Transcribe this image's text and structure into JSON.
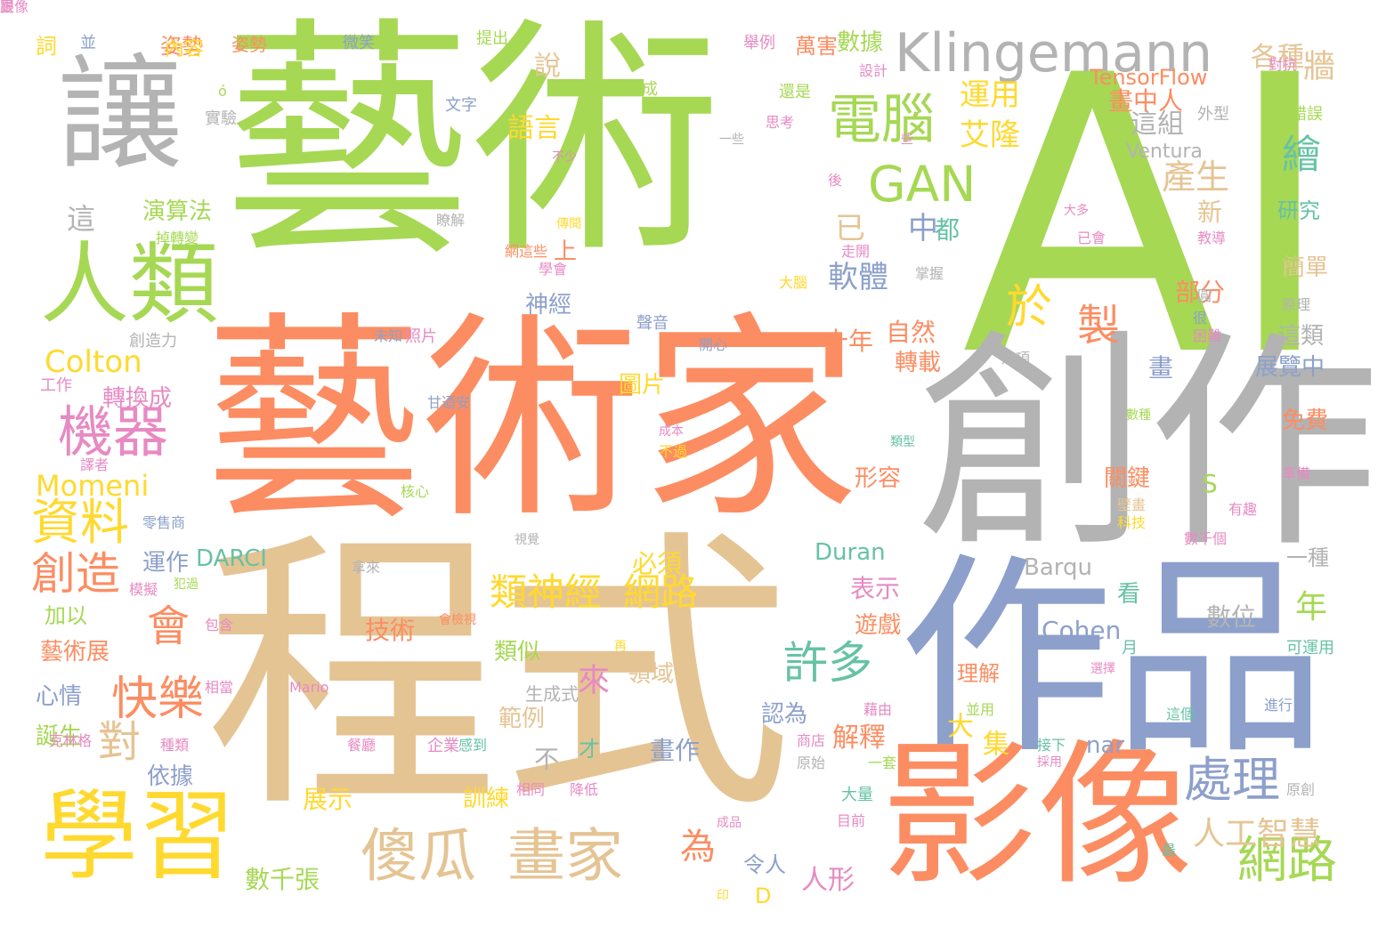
{
  "palette": {
    "green": "#a6d854",
    "orange": "#fc8d62",
    "tan": "#e5c494",
    "blue": "#8da0cb",
    "gray": "#b3b3b3",
    "yellow": "#ffd92f",
    "teal": "#66c2a5",
    "pink": "#e78ac3"
  },
  "words": [
    {
      "text": "AI",
      "color": "green"
    },
    {
      "text": "藝術",
      "color": "green"
    },
    {
      "text": "藝術家",
      "color": "orange"
    },
    {
      "text": "程式",
      "color": "tan"
    },
    {
      "text": "創作",
      "color": "gray"
    },
    {
      "text": "作品",
      "color": "blue"
    },
    {
      "text": "影像",
      "color": "orange"
    },
    {
      "text": "讓",
      "color": "gray"
    },
    {
      "text": "人類",
      "color": "green"
    },
    {
      "text": "學習",
      "color": "yellow"
    },
    {
      "text": "Klingemann",
      "color": "gray"
    },
    {
      "text": "電腦",
      "color": "green"
    },
    {
      "text": "GAN",
      "color": "green"
    },
    {
      "text": "機器",
      "color": "pink"
    },
    {
      "text": "資料",
      "color": "yellow"
    },
    {
      "text": "創造",
      "color": "orange"
    },
    {
      "text": "處理",
      "color": "blue"
    },
    {
      "text": "傻瓜",
      "color": "tan"
    },
    {
      "text": "畫家",
      "color": "tan"
    },
    {
      "text": "許多",
      "color": "teal"
    },
    {
      "text": "網路",
      "color": "green"
    },
    {
      "text": "快樂",
      "color": "orange"
    },
    {
      "text": "會",
      "color": "orange"
    },
    {
      "text": "Colton",
      "color": "yellow"
    },
    {
      "text": "Momeni",
      "color": "yellow"
    },
    {
      "text": "類神經",
      "color": "yellow"
    },
    {
      "text": "網路",
      "color": "yellow"
    },
    {
      "text": "對",
      "color": "tan"
    },
    {
      "text": "於",
      "color": "yellow"
    },
    {
      "text": "製",
      "color": "orange"
    },
    {
      "text": "繪",
      "color": "teal"
    },
    {
      "text": "產生",
      "color": "tan"
    },
    {
      "text": "運用",
      "color": "yellow"
    },
    {
      "text": "艾隆",
      "color": "yellow"
    },
    {
      "text": "這組",
      "color": "gray"
    },
    {
      "text": "畫中人",
      "color": "orange"
    },
    {
      "text": "TensorFlow",
      "color": "orange"
    },
    {
      "text": "Ventura",
      "color": "gray"
    },
    {
      "text": "各種",
      "color": "tan"
    },
    {
      "text": "牆",
      "color": "tan"
    },
    {
      "text": "軟體",
      "color": "blue"
    },
    {
      "text": "中",
      "color": "blue"
    },
    {
      "text": "都",
      "color": "teal"
    },
    {
      "text": "已",
      "color": "tan"
    },
    {
      "text": "自然",
      "color": "orange"
    },
    {
      "text": "十年",
      "color": "orange"
    },
    {
      "text": "轉載",
      "color": "orange"
    },
    {
      "text": "語言",
      "color": "yellow"
    },
    {
      "text": "說",
      "color": "tan"
    },
    {
      "text": "數據",
      "color": "green"
    },
    {
      "text": "姿勢",
      "color": "orange"
    },
    {
      "text": "演算法",
      "color": "green"
    },
    {
      "text": "這",
      "color": "gray"
    },
    {
      "text": "上",
      "color": "orange"
    },
    {
      "text": "神經",
      "color": "blue"
    },
    {
      "text": "新",
      "color": "tan"
    },
    {
      "text": "研究",
      "color": "teal"
    },
    {
      "text": "部分",
      "color": "orange"
    },
    {
      "text": "簡單",
      "color": "tan"
    },
    {
      "text": "這類",
      "color": "gray"
    },
    {
      "text": "展覽中",
      "color": "blue"
    },
    {
      "text": "畫",
      "color": "blue"
    },
    {
      "text": "免費",
      "color": "orange"
    },
    {
      "text": "關鍵",
      "color": "orange"
    },
    {
      "text": "形容",
      "color": "orange"
    },
    {
      "text": "S",
      "color": "green"
    },
    {
      "text": "一種",
      "color": "gray"
    },
    {
      "text": "Duran",
      "color": "teal"
    },
    {
      "text": "Barqu",
      "color": "gray"
    },
    {
      "text": "數位",
      "color": "gray"
    },
    {
      "text": "年",
      "color": "green"
    },
    {
      "text": "表示",
      "color": "pink"
    },
    {
      "text": "遊戲",
      "color": "orange"
    },
    {
      "text": "Cohen",
      "color": "blue"
    },
    {
      "text": "看",
      "color": "teal"
    },
    {
      "text": "理解",
      "color": "orange"
    },
    {
      "text": "解釋",
      "color": "orange"
    },
    {
      "text": "認為",
      "color": "blue"
    },
    {
      "text": "大",
      "color": "yellow"
    },
    {
      "text": "集",
      "color": "yellow"
    },
    {
      "text": "nar",
      "color": "blue"
    },
    {
      "text": "人工智慧",
      "color": "tan"
    },
    {
      "text": "人形",
      "color": "pink"
    },
    {
      "text": "令人",
      "color": "blue"
    },
    {
      "text": "D",
      "color": "yellow"
    },
    {
      "text": "為",
      "color": "orange"
    },
    {
      "text": "數千張",
      "color": "green"
    },
    {
      "text": "畫作",
      "color": "blue"
    },
    {
      "text": "才",
      "color": "teal"
    },
    {
      "text": "訓練",
      "color": "yellow"
    },
    {
      "text": "展示",
      "color": "yellow"
    },
    {
      "text": "依據",
      "color": "blue"
    },
    {
      "text": "範例",
      "color": "tan"
    },
    {
      "text": "類似",
      "color": "green"
    },
    {
      "text": "領域",
      "color": "tan"
    },
    {
      "text": "來",
      "color": "pink"
    },
    {
      "text": "技術",
      "color": "orange"
    },
    {
      "text": "必須",
      "color": "yellow"
    },
    {
      "text": "圖片",
      "color": "yellow"
    },
    {
      "text": "運作",
      "color": "blue"
    },
    {
      "text": "DARCI",
      "color": "teal"
    },
    {
      "text": "加以",
      "color": "green"
    },
    {
      "text": "藝術展",
      "color": "orange"
    },
    {
      "text": "心情",
      "color": "blue"
    },
    {
      "text": "誕生",
      "color": "green"
    },
    {
      "text": "轉換成",
      "color": "pink"
    },
    {
      "text": "不",
      "color": "gray"
    },
    {
      "text": "詞",
      "color": "yellow"
    },
    {
      "text": "並",
      "color": "blue"
    },
    {
      "text": "內容",
      "color": "yellow"
    },
    {
      "text": "姿勢",
      "color": "orange"
    },
    {
      "text": "微笑",
      "color": "blue"
    },
    {
      "text": "提出",
      "color": "green"
    },
    {
      "text": "舉例",
      "color": "pink"
    },
    {
      "text": "萬害",
      "color": "orange"
    },
    {
      "text": "ó",
      "color": "green"
    },
    {
      "text": "實驗",
      "color": "gray"
    },
    {
      "text": "文字",
      "color": "blue"
    },
    {
      "text": "化成",
      "color": "green"
    },
    {
      "text": "還是",
      "color": "green"
    },
    {
      "text": "思考",
      "color": "pink"
    },
    {
      "text": "設計",
      "color": "pink"
    },
    {
      "text": "對抗",
      "color": "pink"
    },
    {
      "text": "外型",
      "color": "gray"
    },
    {
      "text": "錯誤",
      "color": "green"
    },
    {
      "text": "教導",
      "color": "pink"
    },
    {
      "text": "雜糅起",
      "color": "green"
    },
    {
      "text": "圓",
      "color": "gray"
    },
    {
      "text": "原理",
      "color": "gray"
    },
    {
      "text": "創造力",
      "color": "gray"
    },
    {
      "text": "未知",
      "color": "blue"
    },
    {
      "text": "照片",
      "color": "pink"
    },
    {
      "text": "聲音",
      "color": "blue"
    },
    {
      "text": "開心",
      "color": "blue"
    },
    {
      "text": "工作",
      "color": "pink"
    },
    {
      "text": "甘迺安",
      "color": "blue"
    },
    {
      "text": "譯者",
      "color": "pink"
    },
    {
      "text": "核心",
      "color": "green"
    },
    {
      "text": "零售商",
      "color": "blue"
    },
    {
      "text": "模擬",
      "color": "pink"
    },
    {
      "text": "犯過",
      "color": "green"
    },
    {
      "text": "相當",
      "color": "pink"
    },
    {
      "text": "包含",
      "color": "pink"
    },
    {
      "text": "會檢視",
      "color": "orange"
    },
    {
      "text": "再",
      "color": "yellow"
    },
    {
      "text": "Mario",
      "color": "pink"
    },
    {
      "text": "種類",
      "color": "pink"
    },
    {
      "text": "餐廳",
      "color": "pink"
    },
    {
      "text": "企業",
      "color": "pink"
    },
    {
      "text": "感到",
      "color": "teal"
    },
    {
      "text": "相同",
      "color": "pink"
    },
    {
      "text": "降低",
      "color": "pink"
    },
    {
      "text": "成品",
      "color": "pink"
    },
    {
      "text": "印",
      "color": "yellow"
    },
    {
      "text": "成本",
      "color": "pink"
    },
    {
      "text": "不過",
      "color": "yellow"
    },
    {
      "text": "類型",
      "color": "teal"
    },
    {
      "text": "壁畫",
      "color": "tan"
    },
    {
      "text": "科技",
      "color": "yellow"
    },
    {
      "text": "數千個",
      "color": "pink"
    },
    {
      "text": "有趣",
      "color": "pink"
    },
    {
      "text": "準備",
      "color": "pink"
    },
    {
      "text": "數種",
      "color": "green"
    },
    {
      "text": "可運用",
      "color": "teal"
    },
    {
      "text": "月",
      "color": "teal"
    },
    {
      "text": "選擇",
      "color": "pink"
    },
    {
      "text": "這個",
      "color": "teal"
    },
    {
      "text": "進行",
      "color": "blue"
    },
    {
      "text": "接下",
      "color": "teal"
    },
    {
      "text": "採用",
      "color": "pink"
    },
    {
      "text": "原創",
      "color": "gray"
    },
    {
      "text": "最",
      "color": "teal"
    },
    {
      "text": "目前",
      "color": "pink"
    },
    {
      "text": "大量",
      "color": "teal"
    },
    {
      "text": "一套",
      "color": "green"
    },
    {
      "text": "原始",
      "color": "gray"
    },
    {
      "text": "商店",
      "color": "pink"
    },
    {
      "text": "並用",
      "color": "green"
    },
    {
      "text": "藉由",
      "color": "pink"
    },
    {
      "text": "這項",
      "color": "gray"
    },
    {
      "text": "克林格",
      "color": "pink"
    },
    {
      "text": "掉轉變",
      "color": "green"
    },
    {
      "text": "瞭解",
      "color": "gray"
    },
    {
      "text": "網這些",
      "color": "orange"
    },
    {
      "text": "學會",
      "color": "pink"
    },
    {
      "text": "大多",
      "color": "pink"
    },
    {
      "text": "已會",
      "color": "pink"
    },
    {
      "text": "很",
      "color": "blue"
    },
    {
      "text": "困難",
      "color": "pink"
    },
    {
      "text": "大腦",
      "color": "yellow"
    },
    {
      "text": "掌握",
      "color": "gray"
    },
    {
      "text": "後",
      "color": "pink"
    },
    {
      "text": "走開",
      "color": "pink"
    },
    {
      "text": "不少",
      "color": "pink"
    },
    {
      "text": "傳聞",
      "color": "yellow"
    },
    {
      "text": "一些",
      "color": "gray"
    },
    {
      "text": "些",
      "color": "pink"
    },
    {
      "text": "拿來",
      "color": "gray"
    },
    {
      "text": "生成式",
      "color": "gray"
    },
    {
      "text": "視覺",
      "color": "gray"
    },
    {
      "text": "é",
      "color": "green"
    },
    {
      "text": "曼",
      "color": "pink"
    },
    {
      "text": "跟像",
      "color": "pink"
    }
  ]
}
